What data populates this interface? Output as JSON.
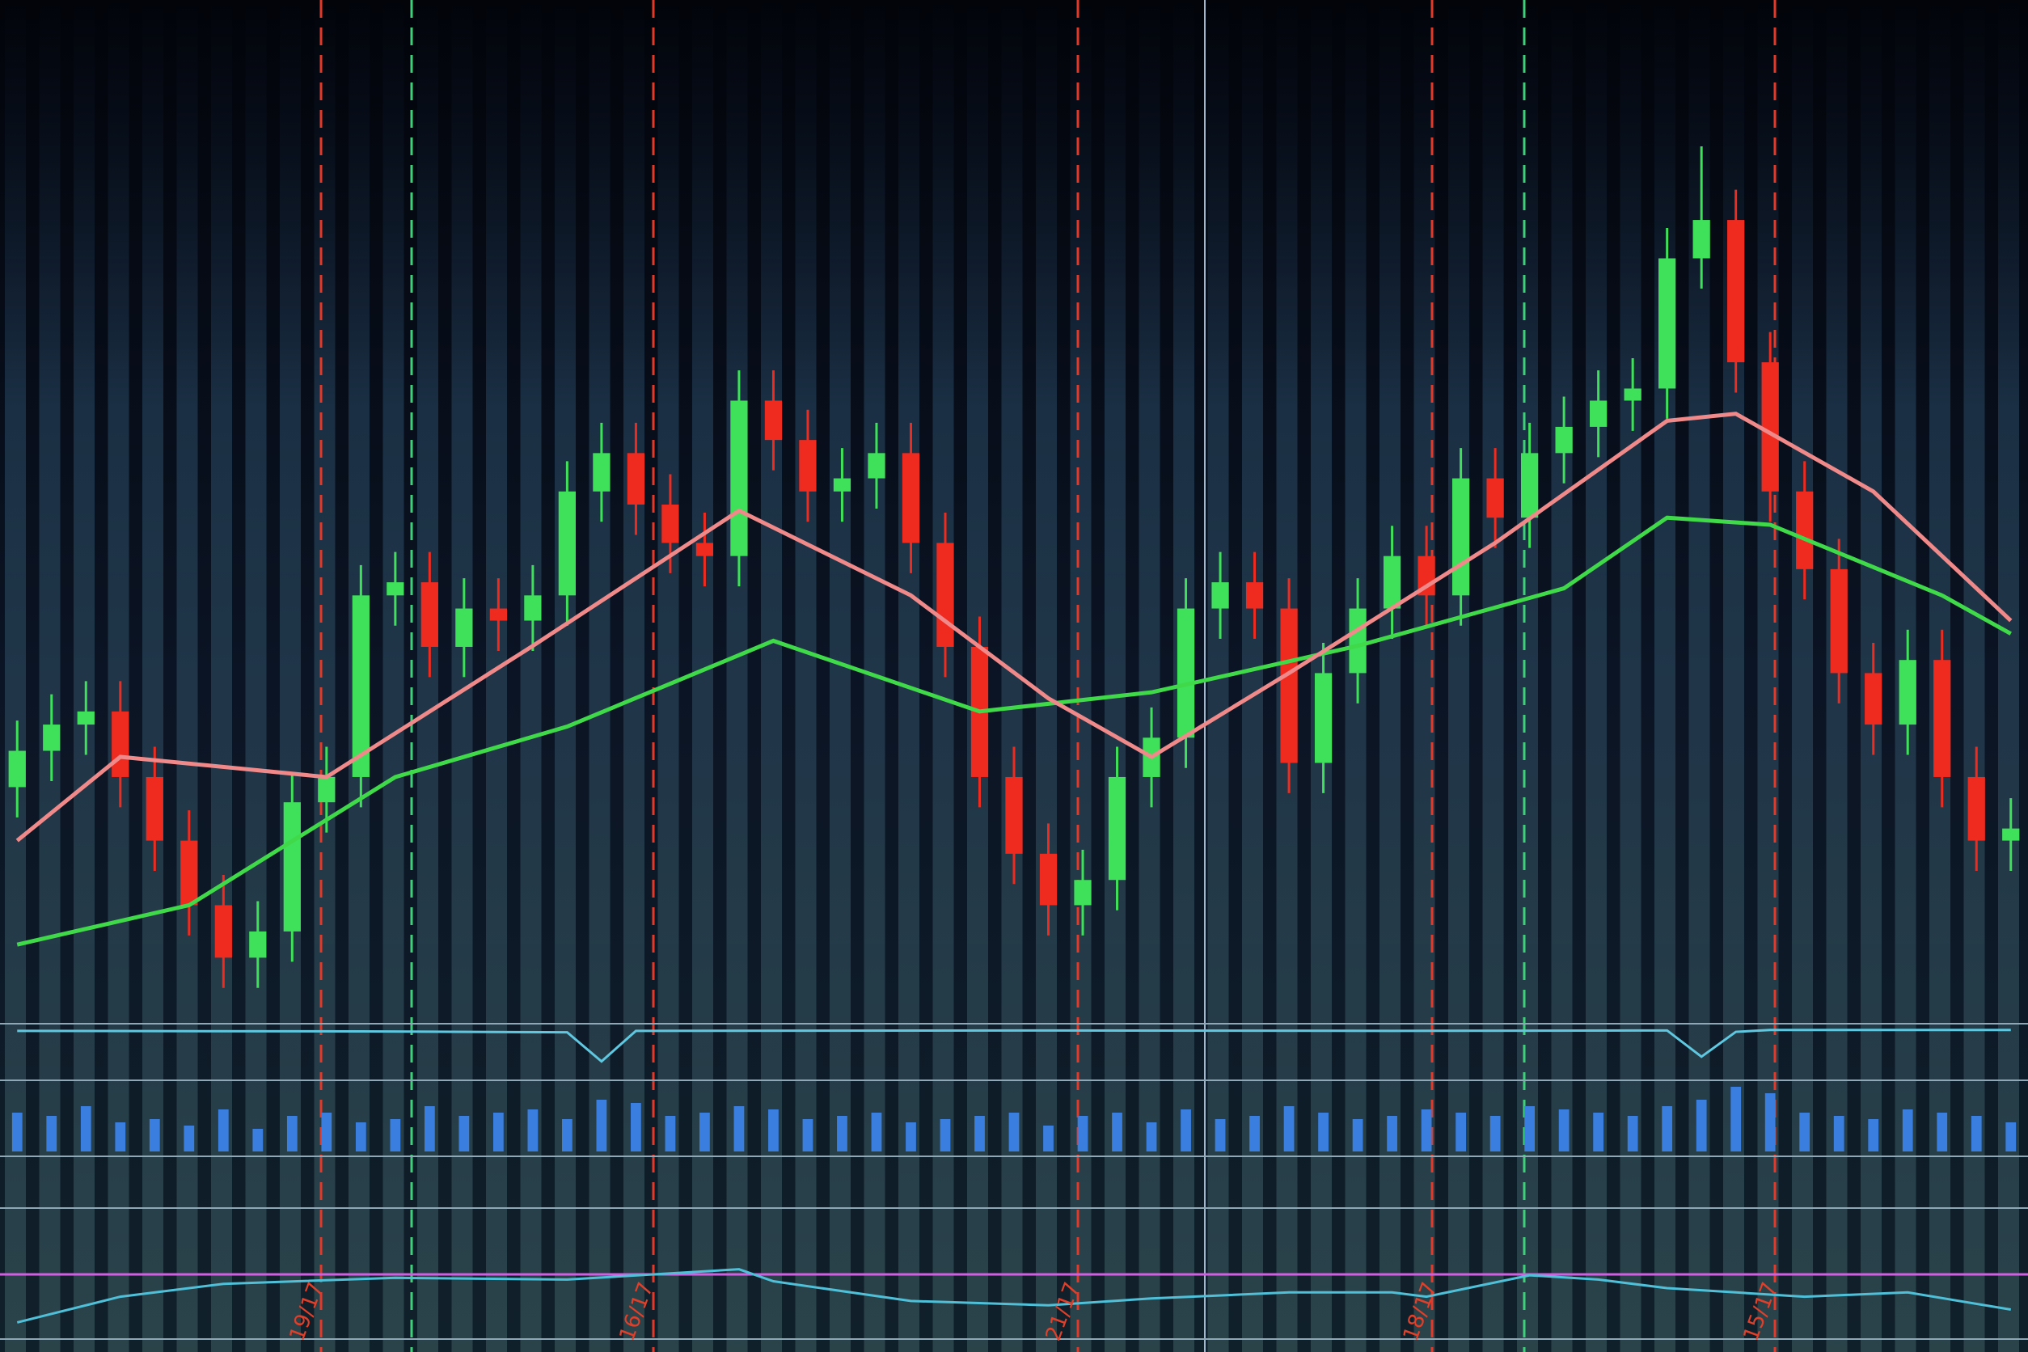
{
  "chart_data": [
    {
      "type": "candlestick",
      "up_color": "#3fe05a",
      "down_color": "#ef2b20",
      "xlim": [
        -0.5,
        58.5
      ],
      "ylim": [
        0,
        100
      ],
      "open": [
        22,
        25.6,
        28.2,
        29.5,
        23,
        16.7,
        10.3,
        5.1,
        7.7,
        20.5,
        23,
        41,
        42.3,
        35.9,
        39.7,
        38.5,
        41,
        51.3,
        55.1,
        50,
        46.2,
        44.9,
        60.3,
        56.4,
        51.3,
        52.6,
        55.1,
        46.2,
        35.9,
        23,
        15.4,
        10.3,
        12.8,
        23,
        26.9,
        39.7,
        42.3,
        39.7,
        24.4,
        33.3,
        39.7,
        44.9,
        41,
        52.6,
        48.7,
        55.1,
        57.7,
        60.3,
        61.5,
        74.4,
        78.2,
        64.1,
        51.3,
        43.6,
        33.3,
        28.2,
        34.6,
        23,
        16.7
      ],
      "high": [
        28.6,
        31.2,
        32.5,
        32.5,
        26,
        19.7,
        13.3,
        10.7,
        23.5,
        26,
        44,
        45.3,
        45.3,
        42.7,
        42.7,
        44,
        54.3,
        58.1,
        58.1,
        53,
        49.2,
        63.3,
        63.3,
        59.4,
        55.6,
        58.1,
        58.1,
        49.2,
        38.9,
        26,
        18.4,
        15.8,
        26,
        29.9,
        42.7,
        45.3,
        45.3,
        42.7,
        36.3,
        42.7,
        47.9,
        47.9,
        55.6,
        55.6,
        58.1,
        60.7,
        63.3,
        64.5,
        77.4,
        85.5,
        81.2,
        67.1,
        54.3,
        46.6,
        36.3,
        37.6,
        37.6,
        26,
        20.9
      ],
      "low": [
        19,
        22.6,
        25.2,
        20,
        13.7,
        7.3,
        2.1,
        2.1,
        4.7,
        17.5,
        20,
        38,
        32.9,
        32.9,
        35.5,
        35.5,
        38,
        48.3,
        47,
        43.2,
        41.9,
        41.9,
        53.4,
        48.3,
        48.3,
        49.6,
        43.2,
        32.9,
        20,
        12.4,
        7.3,
        7.3,
        9.8,
        20,
        23.9,
        36.7,
        36.7,
        21.4,
        21.4,
        30.3,
        36.7,
        38,
        38,
        45.7,
        45.7,
        52.1,
        54.7,
        57.3,
        58.5,
        71.4,
        61.1,
        48.3,
        40.6,
        30.3,
        25.2,
        25.2,
        20,
        13.7,
        13.7
      ],
      "close": [
        25.6,
        28.2,
        29.5,
        23,
        16.7,
        10.3,
        5.1,
        7.7,
        20.5,
        23,
        41,
        42.3,
        35.9,
        39.7,
        38.5,
        41,
        51.3,
        55.1,
        50,
        46.2,
        44.9,
        60.3,
        56.4,
        51.3,
        52.6,
        55.1,
        46.2,
        35.9,
        23,
        15.4,
        10.3,
        12.8,
        23,
        26.9,
        39.7,
        42.3,
        39.7,
        24.4,
        33.3,
        39.7,
        44.9,
        41,
        52.6,
        48.7,
        55.1,
        57.7,
        60.3,
        61.5,
        74.4,
        78.2,
        64.1,
        51.3,
        43.6,
        33.3,
        28.2,
        34.6,
        23,
        16.7,
        17.9
      ],
      "lines": [
        {
          "color": "#3fd94a",
          "x": [
            0,
            5,
            11,
            16,
            22,
            28,
            33,
            39,
            45,
            48,
            51,
            56,
            58
          ],
          "values": [
            6.4,
            10.3,
            23,
            28,
            36.5,
            29.5,
            31.4,
            36,
            41.7,
            48.7,
            48,
            41,
            37.2
          ]
        },
        {
          "color": "#f08a8a",
          "x": [
            0,
            3,
            9,
            15,
            21,
            26,
            30,
            33,
            37,
            43,
            48,
            50,
            54,
            58
          ],
          "values": [
            16.7,
            25,
            23,
            36,
            49.4,
            41,
            30.8,
            25,
            33.3,
            46.2,
            58.3,
            59,
            51.3,
            38.5
          ]
        }
      ]
    },
    {
      "type": "line",
      "color": "#5fc8e0",
      "xlim": [
        -0.5,
        58.5
      ],
      "ylim": [
        0,
        100
      ],
      "x": [
        0,
        10,
        16,
        17,
        18,
        30,
        40,
        48,
        49,
        50,
        51,
        58
      ],
      "values": [
        95,
        94,
        92,
        30,
        95,
        96,
        95,
        96,
        40,
        93,
        97,
        97
      ]
    },
    {
      "type": "bar",
      "color": "#3a7fe0",
      "xlim": [
        -0.5,
        58.5
      ],
      "ylim": [
        0,
        100
      ],
      "values": [
        60,
        55,
        70,
        45,
        50,
        40,
        65,
        35,
        55,
        60,
        45,
        50,
        70,
        55,
        60,
        65,
        50,
        80,
        75,
        55,
        60,
        70,
        65,
        50,
        55,
        60,
        45,
        50,
        55,
        60,
        40,
        55,
        60,
        45,
        65,
        50,
        55,
        70,
        60,
        50,
        55,
        65,
        60,
        55,
        70,
        65,
        60,
        55,
        70,
        80,
        100,
        90,
        60,
        55,
        50,
        65,
        60,
        55,
        45
      ]
    },
    {
      "type": "line",
      "color": "#4fc0d8",
      "xlim": [
        -0.5,
        58.5
      ],
      "ylim": [
        0,
        100
      ],
      "x": [
        0,
        3,
        6,
        11,
        16,
        21,
        22,
        26,
        30,
        33,
        37,
        40,
        41,
        44,
        46,
        48,
        50,
        52,
        55,
        58
      ],
      "values": [
        10,
        40,
        55,
        62,
        60,
        72,
        58,
        35,
        30,
        38,
        45,
        45,
        40,
        65,
        60,
        50,
        45,
        40,
        45,
        25
      ],
      "annotations": [
        {
          "text": "19/17",
          "x": 8.3
        },
        {
          "text": "16/17",
          "x": 17.9
        },
        {
          "text": "21/17",
          "x": 30.3
        },
        {
          "text": "18/17",
          "x": 40.7
        },
        {
          "text": "15/17",
          "x": 50.6
        }
      ]
    }
  ]
}
